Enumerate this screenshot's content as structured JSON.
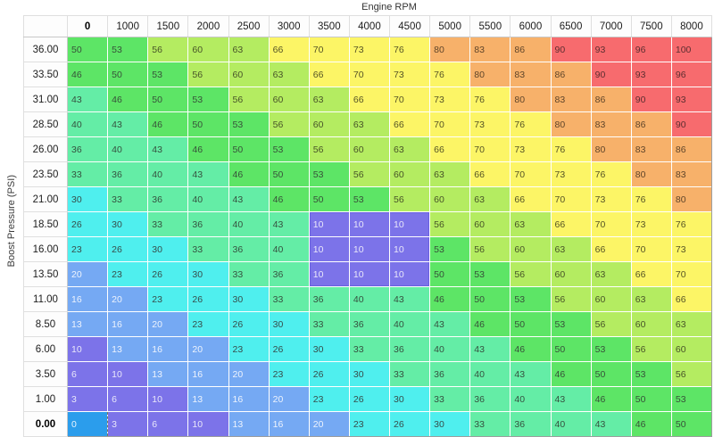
{
  "table": {
    "x_axis_label": "Engine RPM",
    "y_axis_label": "Boost Pressure (PSI)",
    "columns": [
      "0",
      "1000",
      "1500",
      "2000",
      "2500",
      "3000",
      "3500",
      "4000",
      "4500",
      "5000",
      "5500",
      "6000",
      "6500",
      "7000",
      "7500",
      "8000"
    ],
    "rows": [
      {
        "label": "36.00",
        "values": [
          50,
          53,
          56,
          60,
          63,
          66,
          70,
          73,
          76,
          80,
          83,
          86,
          90,
          93,
          96,
          100
        ]
      },
      {
        "label": "33.50",
        "values": [
          46,
          50,
          53,
          56,
          60,
          63,
          66,
          70,
          73,
          76,
          80,
          83,
          86,
          90,
          93,
          96
        ]
      },
      {
        "label": "31.00",
        "values": [
          43,
          46,
          50,
          53,
          56,
          60,
          63,
          66,
          70,
          73,
          76,
          80,
          83,
          86,
          90,
          93
        ]
      },
      {
        "label": "28.50",
        "values": [
          40,
          43,
          46,
          50,
          53,
          56,
          60,
          63,
          66,
          70,
          73,
          76,
          80,
          83,
          86,
          90
        ]
      },
      {
        "label": "26.00",
        "values": [
          36,
          40,
          43,
          46,
          50,
          53,
          56,
          60,
          63,
          66,
          70,
          73,
          76,
          80,
          83,
          86
        ]
      },
      {
        "label": "23.50",
        "values": [
          33,
          36,
          40,
          43,
          46,
          50,
          53,
          56,
          60,
          63,
          66,
          70,
          73,
          76,
          80,
          83
        ]
      },
      {
        "label": "21.00",
        "values": [
          30,
          33,
          36,
          40,
          43,
          46,
          50,
          53,
          56,
          60,
          63,
          66,
          70,
          73,
          76,
          80
        ]
      },
      {
        "label": "18.50",
        "values": [
          26,
          30,
          33,
          36,
          40,
          43,
          10,
          10,
          10,
          56,
          60,
          63,
          66,
          70,
          73,
          76
        ]
      },
      {
        "label": "16.00",
        "values": [
          23,
          26,
          30,
          33,
          36,
          40,
          10,
          10,
          10,
          53,
          56,
          60,
          63,
          66,
          70,
          73
        ]
      },
      {
        "label": "13.50",
        "values": [
          20,
          23,
          26,
          30,
          33,
          36,
          10,
          10,
          10,
          50,
          53,
          56,
          60,
          63,
          66,
          70
        ]
      },
      {
        "label": "11.00",
        "values": [
          16,
          20,
          23,
          26,
          30,
          33,
          36,
          40,
          43,
          46,
          50,
          53,
          56,
          60,
          63,
          66
        ]
      },
      {
        "label": "8.50",
        "values": [
          13,
          16,
          20,
          23,
          26,
          30,
          33,
          36,
          40,
          43,
          46,
          50,
          53,
          56,
          60,
          63
        ]
      },
      {
        "label": "6.00",
        "values": [
          10,
          13,
          16,
          20,
          23,
          26,
          30,
          33,
          36,
          40,
          43,
          46,
          50,
          53,
          56,
          60
        ]
      },
      {
        "label": "3.50",
        "values": [
          6,
          10,
          13,
          16,
          20,
          23,
          26,
          30,
          33,
          36,
          40,
          43,
          46,
          50,
          53,
          56
        ]
      },
      {
        "label": "1.00",
        "values": [
          3,
          6,
          10,
          13,
          16,
          20,
          23,
          26,
          30,
          33,
          36,
          40,
          43,
          46,
          50,
          53
        ]
      },
      {
        "label": "0.00",
        "values": [
          0,
          3,
          6,
          10,
          13,
          16,
          20,
          23,
          26,
          30,
          33,
          36,
          40,
          43,
          46,
          50
        ]
      }
    ],
    "active_cell": {
      "column": "0",
      "row": "0.00",
      "value": 0,
      "bg": "#2B9DEC",
      "text": "#EAF4FE",
      "border": "#7E7B5A"
    },
    "selection": {
      "columns": [
        "3500",
        "4000",
        "4500"
      ],
      "rows": [
        "18.50",
        "16.00",
        "13.50"
      ],
      "value": 10,
      "outline": "#6A61DF"
    }
  },
  "color_bands": [
    {
      "name": "purple",
      "max": 10,
      "bg": "#7C73E9",
      "text": "#E9E7FA"
    },
    {
      "name": "blue",
      "max": 20,
      "bg": "#75A9F3",
      "text": "#EDF3FD"
    },
    {
      "name": "cyan",
      "max": 30,
      "bg": "#4FEFEE",
      "text": "#374D4B"
    },
    {
      "name": "aquamarine",
      "max": 43,
      "bg": "#64EDA6",
      "text": "#35513F"
    },
    {
      "name": "green",
      "max": 53,
      "bg": "#5DE566",
      "text": "#375139"
    },
    {
      "name": "yellow-green",
      "max": 63,
      "bg": "#B4EC61",
      "text": "#485428"
    },
    {
      "name": "yellow",
      "max": 76,
      "bg": "#FCF566",
      "text": "#565426"
    },
    {
      "name": "orange",
      "max": 86,
      "bg": "#F7B16A",
      "text": "#5F452A"
    },
    {
      "name": "red",
      "max": 100,
      "bg": "#F76B6E",
      "text": "#5C2E30"
    }
  ]
}
